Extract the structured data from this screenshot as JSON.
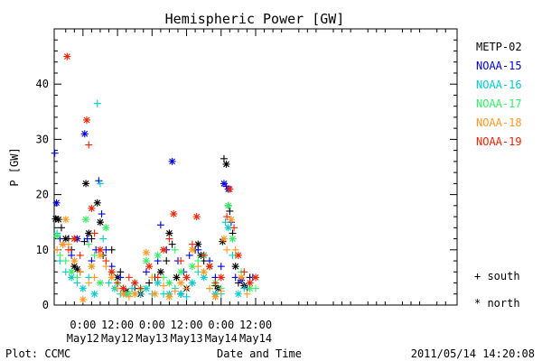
{
  "chart_data": {
    "type": "scatter",
    "title": "Hemispheric Power [GW]",
    "xlabel": "Date and Time",
    "ylabel": "P [GW]",
    "ylim": [
      0,
      50
    ],
    "xlim_hours": [
      -10,
      130
    ],
    "x_ticks": [
      {
        "h": 0,
        "time": "0:00",
        "day": "May12"
      },
      {
        "h": 12,
        "time": "12:00",
        "day": "May12"
      },
      {
        "h": 24,
        "time": "0:00",
        "day": "May13"
      },
      {
        "h": 36,
        "time": "12:00",
        "day": "May13"
      },
      {
        "h": 48,
        "time": "0:00",
        "day": "May14"
      },
      {
        "h": 60,
        "time": "12:00",
        "day": "May14"
      }
    ],
    "y_ticks": [
      0,
      10,
      20,
      30,
      40
    ],
    "grid": false,
    "legend_placement": "right",
    "hemisphere_key": [
      {
        "symbol": "+",
        "label": "south"
      },
      {
        "symbol": "*",
        "label": "north"
      }
    ],
    "series": [
      {
        "name": "METP-02",
        "color": "#000000",
        "points": [
          [
            -9.5,
            15.6,
            "n"
          ],
          [
            -8.5,
            15.5,
            "n"
          ],
          [
            -7.5,
            14,
            "s"
          ],
          [
            -6,
            12,
            "n"
          ],
          [
            -5,
            12,
            "s"
          ],
          [
            -4,
            10,
            "s"
          ],
          [
            -3,
            7,
            "n"
          ],
          [
            -2,
            6.5,
            "n"
          ],
          [
            -1,
            6,
            "s"
          ],
          [
            0.5,
            11.5,
            "s"
          ],
          [
            1,
            22,
            "n"
          ],
          [
            2,
            13,
            "n"
          ],
          [
            3,
            12,
            "s"
          ],
          [
            5,
            18.5,
            "n"
          ],
          [
            6,
            15,
            "n"
          ],
          [
            7,
            9,
            "s"
          ],
          [
            10,
            10,
            "s"
          ],
          [
            12,
            5,
            "n"
          ],
          [
            13,
            6,
            "s"
          ],
          [
            15,
            2.5,
            "n"
          ],
          [
            18,
            3,
            "s"
          ],
          [
            20,
            2,
            "n"
          ],
          [
            23,
            4,
            "s"
          ],
          [
            25,
            5,
            "s"
          ],
          [
            27,
            6,
            "n"
          ],
          [
            29,
            8,
            "s"
          ],
          [
            30,
            13,
            "n"
          ],
          [
            31,
            11,
            "s"
          ],
          [
            32.5,
            5,
            "n"
          ],
          [
            34,
            2,
            "s"
          ],
          [
            36,
            3,
            "n"
          ],
          [
            38,
            4,
            "s"
          ],
          [
            39,
            10,
            "s"
          ],
          [
            40,
            11,
            "n"
          ],
          [
            41,
            9,
            "n"
          ],
          [
            42,
            8,
            "s"
          ],
          [
            44,
            7,
            "n"
          ],
          [
            46,
            3.5,
            "s"
          ],
          [
            47,
            3,
            "n"
          ],
          [
            48.5,
            11.5,
            "n"
          ],
          [
            49,
            26.5,
            "s"
          ],
          [
            49.8,
            25.5,
            "n"
          ],
          [
            50.5,
            18,
            "s"
          ],
          [
            51,
            17,
            "s"
          ],
          [
            52,
            13,
            "s"
          ],
          [
            53,
            7,
            "n"
          ],
          [
            54,
            4,
            "s"
          ],
          [
            56,
            3.5,
            "n"
          ],
          [
            58,
            5,
            "s"
          ]
        ]
      },
      {
        "name": "NOAA-15",
        "color": "#0000dd",
        "points": [
          [
            -9.8,
            27.5,
            "s"
          ],
          [
            -9.2,
            18.5,
            "n"
          ],
          [
            -8,
            12,
            "s"
          ],
          [
            -7,
            11,
            "s"
          ],
          [
            -4,
            9,
            "s"
          ],
          [
            -2,
            12,
            "n"
          ],
          [
            0.6,
            31,
            "n"
          ],
          [
            1.5,
            12,
            "s"
          ],
          [
            3,
            8,
            "s"
          ],
          [
            4.5,
            10,
            "s"
          ],
          [
            5.5,
            22.5,
            "s"
          ],
          [
            6.5,
            16.5,
            "s"
          ],
          [
            8,
            10,
            "s"
          ],
          [
            10,
            7,
            "s"
          ],
          [
            13,
            5,
            "s"
          ],
          [
            18,
            4,
            "s"
          ],
          [
            22,
            6,
            "s"
          ],
          [
            26,
            8,
            "s"
          ],
          [
            27,
            14.5,
            "s"
          ],
          [
            29,
            10,
            "s"
          ],
          [
            31,
            26,
            "n"
          ],
          [
            33,
            8,
            "s"
          ],
          [
            35,
            6,
            "s"
          ],
          [
            37,
            9,
            "s"
          ],
          [
            40,
            10,
            "s"
          ],
          [
            42,
            9,
            "n"
          ],
          [
            44,
            8,
            "s"
          ],
          [
            46,
            5,
            "s"
          ],
          [
            48,
            7,
            "s"
          ],
          [
            49,
            22,
            "n"
          ],
          [
            49.8,
            21.5,
            "s"
          ],
          [
            50.5,
            21,
            "n"
          ],
          [
            51.5,
            15,
            "s"
          ],
          [
            53,
            5,
            "s"
          ],
          [
            55,
            4.5,
            "n"
          ],
          [
            57,
            3,
            "s"
          ],
          [
            59,
            5,
            "s"
          ]
        ]
      },
      {
        "name": "NOAA-16",
        "color": "#00cccc",
        "points": [
          [
            -9,
            13,
            "s"
          ],
          [
            -8,
            8,
            "s"
          ],
          [
            -6,
            6,
            "s"
          ],
          [
            -4,
            5,
            "n"
          ],
          [
            -2,
            4,
            "s"
          ],
          [
            0,
            3,
            "n"
          ],
          [
            2,
            5,
            "s"
          ],
          [
            4,
            2,
            "n"
          ],
          [
            5,
            36.5,
            "s"
          ],
          [
            6,
            22,
            "s"
          ],
          [
            7,
            12,
            "s"
          ],
          [
            9,
            4,
            "s"
          ],
          [
            11,
            3,
            "n"
          ],
          [
            13,
            2,
            "s"
          ],
          [
            15,
            2,
            "n"
          ],
          [
            17,
            3,
            "s"
          ],
          [
            20,
            2,
            "s"
          ],
          [
            22,
            3,
            "n"
          ],
          [
            24,
            2,
            "s"
          ],
          [
            26,
            4,
            "n"
          ],
          [
            28,
            2,
            "s"
          ],
          [
            30,
            2,
            "n"
          ],
          [
            32,
            3,
            "s"
          ],
          [
            34,
            2,
            "n"
          ],
          [
            36,
            1.5,
            "s"
          ],
          [
            38,
            4,
            "n"
          ],
          [
            40,
            6,
            "s"
          ],
          [
            42,
            5,
            "n"
          ],
          [
            44,
            3,
            "s"
          ],
          [
            46,
            2,
            "n"
          ],
          [
            48,
            2,
            "s"
          ],
          [
            49.5,
            15,
            "s"
          ],
          [
            50.5,
            14,
            "n"
          ],
          [
            52,
            9,
            "s"
          ],
          [
            54,
            2,
            "n"
          ],
          [
            56,
            3,
            "s"
          ]
        ]
      },
      {
        "name": "NOAA-17",
        "color": "#33ee66",
        "points": [
          [
            -9,
            12.5,
            "n"
          ],
          [
            -8,
            9,
            "s"
          ],
          [
            -6,
            8,
            "s"
          ],
          [
            -4,
            6,
            "n"
          ],
          [
            -2,
            5,
            "s"
          ],
          [
            1,
            15.5,
            "n"
          ],
          [
            2,
            11,
            "s"
          ],
          [
            3,
            7,
            "n"
          ],
          [
            4,
            9,
            "s"
          ],
          [
            6,
            4,
            "n"
          ],
          [
            8,
            14,
            "n"
          ],
          [
            10,
            6,
            "s"
          ],
          [
            12,
            4,
            "n"
          ],
          [
            14,
            3,
            "s"
          ],
          [
            16,
            2,
            "n"
          ],
          [
            18,
            4,
            "s"
          ],
          [
            20,
            3,
            "n"
          ],
          [
            22,
            8,
            "n"
          ],
          [
            24,
            5,
            "s"
          ],
          [
            26,
            9,
            "n"
          ],
          [
            28,
            5,
            "s"
          ],
          [
            30,
            4,
            "n"
          ],
          [
            32,
            10,
            "s"
          ],
          [
            34,
            6,
            "n"
          ],
          [
            36,
            5,
            "s"
          ],
          [
            38,
            7,
            "n"
          ],
          [
            40,
            8,
            "s"
          ],
          [
            42,
            9,
            "n"
          ],
          [
            44,
            7,
            "s"
          ],
          [
            46,
            4,
            "n"
          ],
          [
            48,
            3,
            "s"
          ],
          [
            50.5,
            18,
            "n"
          ],
          [
            52,
            12,
            "n"
          ],
          [
            53,
            9,
            "s"
          ],
          [
            55,
            6,
            "s"
          ],
          [
            58,
            3,
            "n"
          ],
          [
            60,
            3,
            "s"
          ]
        ]
      },
      {
        "name": "NOAA-18",
        "color": "#ff9922",
        "points": [
          [
            -9,
            10,
            "s"
          ],
          [
            -7,
            11,
            "n"
          ],
          [
            -6,
            15.5,
            "n"
          ],
          [
            -5,
            11,
            "s"
          ],
          [
            -3,
            8,
            "n"
          ],
          [
            -1,
            6,
            "s"
          ],
          [
            0,
            1,
            "n"
          ],
          [
            2,
            4,
            "s"
          ],
          [
            3,
            7,
            "n"
          ],
          [
            4,
            5,
            "s"
          ],
          [
            6,
            9,
            "n"
          ],
          [
            8,
            7,
            "s"
          ],
          [
            10,
            5,
            "n"
          ],
          [
            12,
            3,
            "s"
          ],
          [
            14,
            2,
            "n"
          ],
          [
            16,
            1.5,
            "s"
          ],
          [
            18,
            2,
            "n"
          ],
          [
            20,
            3,
            "s"
          ],
          [
            22,
            9.5,
            "n"
          ],
          [
            24,
            5,
            "s"
          ],
          [
            25,
            2,
            "n"
          ],
          [
            28,
            3.5,
            "s"
          ],
          [
            30,
            1.5,
            "n"
          ],
          [
            32,
            2.5,
            "s"
          ],
          [
            34,
            4,
            "n"
          ],
          [
            36,
            3,
            "s"
          ],
          [
            38,
            10,
            "n"
          ],
          [
            40,
            7,
            "s"
          ],
          [
            42,
            6,
            "n"
          ],
          [
            44,
            3,
            "s"
          ],
          [
            46,
            1.5,
            "n"
          ],
          [
            48,
            2.5,
            "s"
          ],
          [
            49,
            12,
            "n"
          ],
          [
            50,
            10,
            "s"
          ],
          [
            51.5,
            15.5,
            "n"
          ],
          [
            53,
            10,
            "s"
          ],
          [
            55,
            5,
            "n"
          ],
          [
            57,
            2,
            "s"
          ]
        ]
      },
      {
        "name": "NOAA-19",
        "color": "#ee2200",
        "points": [
          [
            -5.5,
            45,
            "n"
          ],
          [
            -5,
            10,
            "s"
          ],
          [
            -3,
            12,
            "n"
          ],
          [
            -1,
            9,
            "s"
          ],
          [
            1.3,
            33.5,
            "n"
          ],
          [
            2,
            29,
            "s"
          ],
          [
            3,
            17.5,
            "n"
          ],
          [
            4,
            13,
            "s"
          ],
          [
            6,
            10,
            "n"
          ],
          [
            8,
            8,
            "s"
          ],
          [
            10,
            6,
            "n"
          ],
          [
            12,
            4,
            "s"
          ],
          [
            14,
            3,
            "n"
          ],
          [
            16,
            5,
            "s"
          ],
          [
            18,
            4,
            "n"
          ],
          [
            20,
            3,
            "s"
          ],
          [
            23,
            7,
            "n"
          ],
          [
            26,
            5,
            "s"
          ],
          [
            28,
            10,
            "n"
          ],
          [
            30,
            12,
            "s"
          ],
          [
            31.5,
            16.5,
            "n"
          ],
          [
            34,
            8,
            "s"
          ],
          [
            36,
            5,
            "n"
          ],
          [
            38,
            11,
            "s"
          ],
          [
            39.5,
            16,
            "n"
          ],
          [
            42,
            9,
            "s"
          ],
          [
            44,
            7,
            "n"
          ],
          [
            46,
            4,
            "s"
          ],
          [
            48,
            5,
            "n"
          ],
          [
            50,
            16,
            "s"
          ],
          [
            51,
            21,
            "n"
          ],
          [
            52.5,
            14,
            "s"
          ],
          [
            54,
            9,
            "n"
          ],
          [
            56,
            6,
            "s"
          ],
          [
            58,
            4,
            "n"
          ],
          [
            60,
            5,
            "n"
          ]
        ]
      }
    ]
  },
  "footer": {
    "left": "Plot: CCMC",
    "right": "2011/05/14 14:20:08"
  }
}
